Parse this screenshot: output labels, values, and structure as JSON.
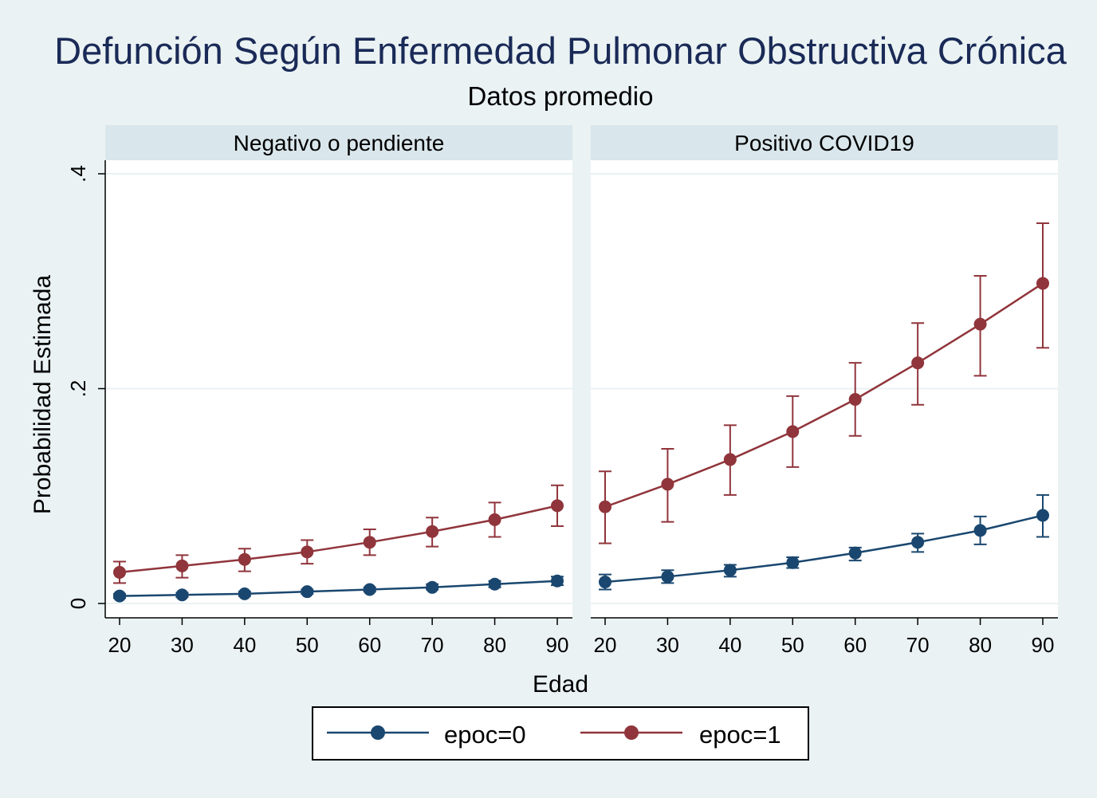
{
  "title": "Defunción Según Enfermedad Pulmonar Obstructiva Crónica",
  "subtitle": "Datos promedio",
  "colors": {
    "background": "#eaf2f3",
    "panel_header": "#d9e6eb",
    "title": "#1a2a57",
    "epoc0": "#1a476f",
    "epoc1": "#90353b"
  },
  "chart_data": [
    {
      "type": "line",
      "panel": "Negativo o pendiente",
      "xlabel": "Edad",
      "ylabel": "Probabilidad Estimada",
      "x": [
        20,
        30,
        40,
        50,
        60,
        70,
        80,
        90
      ],
      "xticks": [
        "20",
        "30",
        "40",
        "50",
        "60",
        "70",
        "80",
        "90"
      ],
      "yticks": [
        "0",
        ".2",
        ".4"
      ],
      "ylim": [
        0,
        0.4
      ],
      "grid": true,
      "series": [
        {
          "name": "epoc=0",
          "values": [
            0.007,
            0.008,
            0.009,
            0.011,
            0.013,
            0.015,
            0.018,
            0.021
          ],
          "ci_low": [
            0.005,
            0.006,
            0.007,
            0.009,
            0.011,
            0.013,
            0.015,
            0.017
          ],
          "ci_high": [
            0.009,
            0.01,
            0.011,
            0.013,
            0.015,
            0.018,
            0.021,
            0.025
          ]
        },
        {
          "name": "epoc=1",
          "values": [
            0.029,
            0.035,
            0.041,
            0.048,
            0.057,
            0.067,
            0.078,
            0.091
          ],
          "ci_low": [
            0.019,
            0.024,
            0.03,
            0.037,
            0.045,
            0.053,
            0.062,
            0.072
          ],
          "ci_high": [
            0.039,
            0.045,
            0.051,
            0.059,
            0.069,
            0.08,
            0.094,
            0.11
          ]
        }
      ]
    },
    {
      "type": "line",
      "panel": "Positivo COVID19",
      "xlabel": "Edad",
      "ylabel": "Probabilidad Estimada",
      "x": [
        20,
        30,
        40,
        50,
        60,
        70,
        80,
        90
      ],
      "xticks": [
        "20",
        "30",
        "40",
        "50",
        "60",
        "70",
        "80",
        "90"
      ],
      "yticks": [
        "0",
        ".2",
        ".4"
      ],
      "ylim": [
        0,
        0.4
      ],
      "grid": true,
      "series": [
        {
          "name": "epoc=0",
          "values": [
            0.02,
            0.025,
            0.031,
            0.038,
            0.047,
            0.057,
            0.068,
            0.082
          ],
          "ci_low": [
            0.013,
            0.019,
            0.025,
            0.033,
            0.04,
            0.048,
            0.055,
            0.062
          ],
          "ci_high": [
            0.027,
            0.031,
            0.036,
            0.043,
            0.052,
            0.065,
            0.081,
            0.101
          ]
        },
        {
          "name": "epoc=1",
          "values": [
            0.09,
            0.111,
            0.134,
            0.16,
            0.19,
            0.224,
            0.26,
            0.298
          ],
          "ci_low": [
            0.056,
            0.076,
            0.101,
            0.127,
            0.156,
            0.185,
            0.212,
            0.238
          ],
          "ci_high": [
            0.123,
            0.144,
            0.166,
            0.193,
            0.224,
            0.261,
            0.305,
            0.354
          ]
        }
      ]
    }
  ],
  "legend": {
    "position": "bottom",
    "items": [
      {
        "label": "epoc=0",
        "color": "#1a476f"
      },
      {
        "label": "epoc=1",
        "color": "#90353b"
      }
    ]
  }
}
